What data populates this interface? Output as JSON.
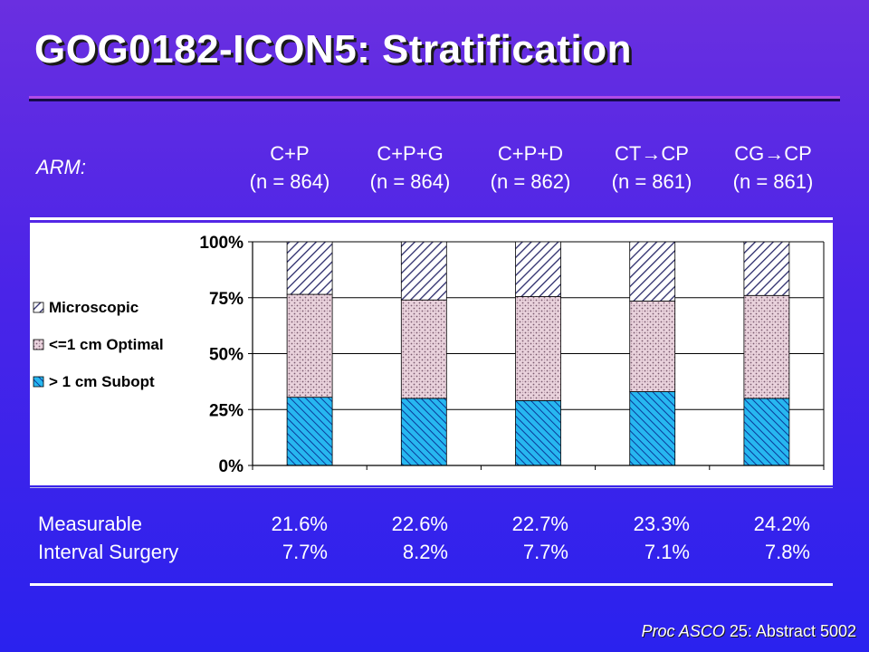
{
  "title": "GOG0182-ICON5:  Stratification",
  "arm_label": "ARM:",
  "arms": [
    {
      "name": "C+P",
      "n": "(n = 864)"
    },
    {
      "name": "C+P+G",
      "n": "(n = 864)"
    },
    {
      "name": "C+P+D",
      "n": "(n = 862)"
    },
    {
      "name": "CT→CP",
      "n": "(n = 861)"
    },
    {
      "name": "CG→CP",
      "n": "(n = 861)"
    }
  ],
  "stats": {
    "measurable_label": "Measurable",
    "interval_label": "Interval Surgery",
    "measurable": [
      "21.6%",
      "22.6%",
      "22.7%",
      "23.3%",
      "24.2%"
    ],
    "interval": [
      "7.7%",
      "8.2%",
      "7.7%",
      "7.1%",
      "7.8%"
    ]
  },
  "citation": {
    "journal": "Proc ASCO",
    "rest": " 25: Abstract 5002"
  },
  "chart_data": {
    "type": "bar",
    "stacked": true,
    "categories": [
      "C+P",
      "C+P+G",
      "C+P+D",
      "CT→CP",
      "CG→CP"
    ],
    "series": [
      {
        "name": "> 1 cm Subopt",
        "values": [
          30.5,
          30,
          29,
          33,
          30
        ]
      },
      {
        "name": "<=1 cm Optimal",
        "values": [
          46,
          44,
          46.5,
          40.5,
          46
        ]
      },
      {
        "name": "Microscopic",
        "values": [
          23.5,
          26,
          24.5,
          26.5,
          24
        ]
      }
    ],
    "yticks": [
      "0%",
      "25%",
      "50%",
      "75%",
      "100%"
    ],
    "ylim": [
      0,
      100
    ],
    "legend": "left",
    "grid": true
  }
}
